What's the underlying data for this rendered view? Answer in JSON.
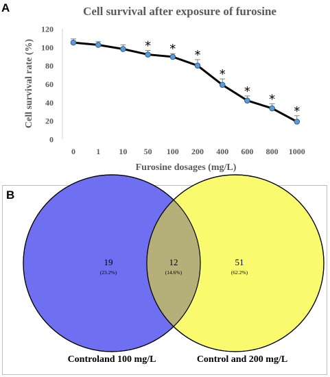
{
  "panels": {
    "a_letter": "A",
    "b_letter": "B"
  },
  "colors": {
    "line": "#000000",
    "marker": "#5b9bd5",
    "marker_edge": "#2e5d8a",
    "axis_text": "#595959",
    "venn_left": "#6f6ff2",
    "venn_right": "#fafa6e",
    "venn_overlap": "#b5b07a"
  },
  "chart_data": [
    {
      "type": "line",
      "title": "Cell survival after exposure of furosine",
      "xlabel": "Furosine dosages (mg/L)",
      "ylabel": "Cell survival rate (%)",
      "categories": [
        "0",
        "1",
        "10",
        "50",
        "100",
        "200",
        "400",
        "600",
        "800",
        "1000"
      ],
      "values": [
        105,
        102.5,
        98,
        92,
        89.5,
        80,
        59,
        42,
        33.5,
        19
      ],
      "errors": [
        4,
        3.5,
        4.5,
        4.5,
        3.5,
        6.5,
        6.5,
        5,
        5,
        6.5
      ],
      "significance": [
        "",
        "",
        "",
        "*",
        "*",
        "*",
        "*",
        "*",
        "*",
        "*"
      ],
      "ylim": [
        0,
        120
      ],
      "yticks": [
        "0",
        "20",
        "40",
        "60",
        "80",
        "100",
        "120"
      ],
      "grid": false,
      "legend": "none"
    },
    {
      "type": "venn",
      "sets": [
        {
          "label": "Controland 100 mg/L",
          "only_count": "19",
          "only_pct": "(23.2%)"
        },
        {
          "label": "Control and 200 mg/L",
          "only_count": "51",
          "only_pct": "(62.2%)"
        }
      ],
      "overlap": {
        "count": "12",
        "pct": "(14.6%)"
      }
    }
  ]
}
